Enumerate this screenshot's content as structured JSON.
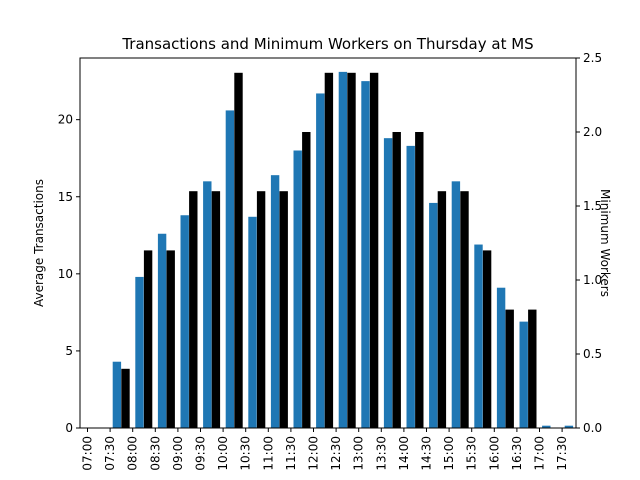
{
  "chart_data": {
    "type": "bar",
    "title": "Transactions and Minimum Workers on Thursday at MS",
    "ylabel_left": "Average Transactions",
    "ylabel_right": "Minimum Workers",
    "categories": [
      "07:00",
      "07:30",
      "08:00",
      "08:30",
      "09:00",
      "09:30",
      "10:00",
      "10:30",
      "11:00",
      "11:30",
      "12:00",
      "12:30",
      "13:00",
      "13:30",
      "14:00",
      "14:30",
      "15:00",
      "15:30",
      "16:00",
      "16:30",
      "17:00",
      "17:30"
    ],
    "ylim_left": [
      0,
      24
    ],
    "ylim_right": [
      0,
      2.5
    ],
    "yticks_left": [
      0,
      5,
      10,
      15,
      20
    ],
    "yticks_right": [
      0.0,
      0.5,
      1.0,
      1.5,
      2.0,
      2.5
    ],
    "series": [
      {
        "name": "Average Transactions",
        "axis": "left",
        "color": "#1f77b4",
        "values": [
          0,
          4.3,
          9.8,
          12.6,
          13.8,
          16.0,
          20.6,
          13.7,
          16.4,
          18.0,
          21.7,
          23.1,
          22.5,
          18.8,
          18.3,
          14.6,
          16.0,
          11.9,
          9.1,
          6.9,
          0.15,
          0.15
        ]
      },
      {
        "name": "Minimum Workers",
        "axis": "right",
        "color": "#000000",
        "values": [
          0,
          0.4,
          1.2,
          1.2,
          1.6,
          1.6,
          2.4,
          1.6,
          1.6,
          2.0,
          2.4,
          2.4,
          2.4,
          2.0,
          2.0,
          1.6,
          1.6,
          1.2,
          0.8,
          0.8,
          0,
          0
        ]
      }
    ],
    "grid": false,
    "legend": "none"
  }
}
